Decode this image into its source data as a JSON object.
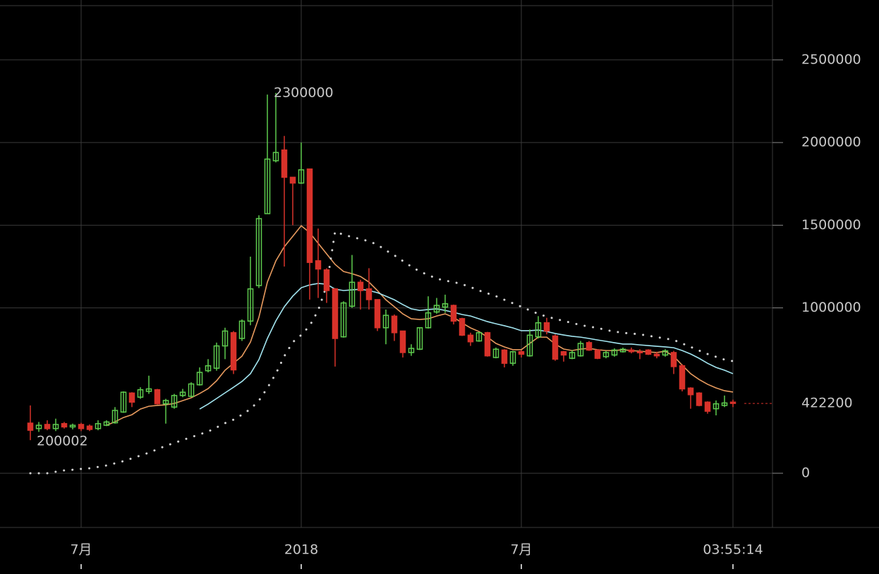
{
  "chart_data": {
    "type": "candlestick",
    "categories": [
      null,
      null,
      null,
      null,
      null,
      null,
      "7月",
      null,
      null,
      null,
      null,
      null,
      null,
      null,
      null,
      null,
      null,
      null,
      null,
      null,
      null,
      null,
      null,
      null,
      null,
      null,
      null,
      null,
      null,
      null,
      null,
      null,
      "2018",
      null,
      null,
      null,
      null,
      null,
      null,
      null,
      null,
      null,
      null,
      null,
      null,
      null,
      null,
      null,
      null,
      null,
      null,
      null,
      null,
      null,
      null,
      null,
      null,
      null,
      "7月",
      null,
      null,
      null,
      null,
      null,
      null,
      null,
      null,
      null,
      null,
      null,
      null,
      null,
      null,
      null,
      null,
      null,
      null,
      null,
      null,
      null,
      null,
      null,
      null,
      "03:55:14"
    ],
    "open": [
      303000,
      270000,
      295000,
      270000,
      300000,
      280000,
      295000,
      285000,
      270000,
      290000,
      305000,
      370000,
      485000,
      460000,
      495000,
      505000,
      420000,
      400000,
      470000,
      465000,
      535000,
      620000,
      635000,
      770000,
      850000,
      815000,
      920000,
      1135000,
      1570000,
      1890000,
      1955000,
      1790000,
      1755000,
      1840000,
      1285000,
      1230000,
      1115000,
      825000,
      1010000,
      1155000,
      1115000,
      1050000,
      880000,
      950000,
      860000,
      730000,
      750000,
      880000,
      975000,
      1005000,
      1015000,
      935000,
      835000,
      800000,
      850000,
      700000,
      745000,
      665000,
      735000,
      710000,
      825000,
      910000,
      830000,
      735000,
      695000,
      710000,
      790000,
      745000,
      705000,
      715000,
      735000,
      745000,
      735000,
      745000,
      720000,
      715000,
      730000,
      650000,
      515000,
      485000,
      430000,
      390000,
      410000,
      430000
    ],
    "high": [
      410000,
      310000,
      320000,
      330000,
      310000,
      300000,
      305000,
      295000,
      320000,
      320000,
      400000,
      495000,
      490000,
      520000,
      590000,
      510000,
      450000,
      480000,
      510000,
      550000,
      640000,
      690000,
      790000,
      880000,
      860000,
      930000,
      1310000,
      1560000,
      2290000,
      2300000,
      2040000,
      1790000,
      2000000,
      1840000,
      1480000,
      1240000,
      1120000,
      1040000,
      1320000,
      1170000,
      1240000,
      1050000,
      990000,
      960000,
      860000,
      780000,
      880000,
      1070000,
      1060000,
      1080000,
      1020000,
      940000,
      850000,
      855000,
      855000,
      760000,
      750000,
      740000,
      745000,
      870000,
      950000,
      940000,
      840000,
      740000,
      745000,
      800000,
      800000,
      750000,
      740000,
      755000,
      760000,
      760000,
      750000,
      750000,
      735000,
      750000,
      740000,
      660000,
      520000,
      490000,
      435000,
      440000,
      470000,
      445000
    ],
    "low": [
      200002,
      250000,
      260000,
      255000,
      270000,
      265000,
      255000,
      255000,
      260000,
      285000,
      300000,
      365000,
      400000,
      450000,
      480000,
      415000,
      300000,
      390000,
      460000,
      460000,
      530000,
      610000,
      620000,
      690000,
      600000,
      800000,
      895000,
      1120000,
      1570000,
      1880000,
      1250000,
      1500000,
      1750000,
      1050000,
      1060000,
      1030000,
      645000,
      820000,
      1000000,
      990000,
      990000,
      860000,
      780000,
      800000,
      700000,
      710000,
      745000,
      875000,
      965000,
      970000,
      900000,
      830000,
      770000,
      795000,
      705000,
      695000,
      640000,
      650000,
      700000,
      705000,
      815000,
      840000,
      680000,
      675000,
      690000,
      705000,
      740000,
      690000,
      695000,
      705000,
      730000,
      725000,
      690000,
      715000,
      695000,
      705000,
      600000,
      495000,
      390000,
      405000,
      360000,
      350000,
      400000,
      400000
    ],
    "close": [
      260000,
      290000,
      270000,
      295000,
      280000,
      290000,
      270000,
      265000,
      300000,
      310000,
      380000,
      490000,
      430000,
      505000,
      510000,
      420000,
      440000,
      470000,
      490000,
      540000,
      610000,
      650000,
      770000,
      860000,
      625000,
      920000,
      1115000,
      1540000,
      1900000,
      1940000,
      1790000,
      1755000,
      1835000,
      1275000,
      1235000,
      1105000,
      815000,
      1030000,
      1155000,
      1105000,
      1050000,
      880000,
      955000,
      850000,
      730000,
      755000,
      880000,
      970000,
      1015000,
      1025000,
      920000,
      835000,
      795000,
      850000,
      710000,
      750000,
      665000,
      735000,
      720000,
      835000,
      910000,
      860000,
      690000,
      715000,
      730000,
      785000,
      745000,
      695000,
      730000,
      745000,
      750000,
      735000,
      730000,
      720000,
      710000,
      740000,
      645000,
      510000,
      475000,
      410000,
      375000,
      420000,
      425000,
      422200
    ],
    "up_color": "#5ecb4e",
    "down_color": "#d8322a",
    "lines": [
      {
        "color": "#e79a5e",
        "style": "solid",
        "values": [
          null,
          null,
          null,
          null,
          null,
          null,
          null,
          null,
          null,
          290000,
          311000,
          337000,
          354000,
          388000,
          405000,
          410000,
          414000,
          422000,
          439000,
          456000,
          482000,
          512000,
          559000,
          623000,
          665000,
          708000,
          793000,
          943000,
          1156000,
          1284000,
          1370000,
          1433000,
          1497000,
          1455000,
          1391000,
          1327000,
          1263000,
          1220000,
          1207000,
          1190000,
          1156000,
          1105000,
          1049000,
          1007000,
          964000,
          934000,
          930000,
          934000,
          951000,
          964000,
          943000,
          909000,
          879000,
          857000,
          823000,
          785000,
          764000,
          747000,
          747000,
          785000,
          823000,
          823000,
          781000,
          751000,
          742000,
          751000,
          755000,
          747000,
          742000,
          742000,
          747000,
          742000,
          738000,
          734000,
          730000,
          738000,
          708000,
          653000,
          602000,
          567000,
          538000,
          516000,
          499000,
          491000
        ]
      },
      {
        "color": "#a2e4ef",
        "style": "solid",
        "values": [
          null,
          null,
          null,
          null,
          null,
          null,
          null,
          null,
          null,
          null,
          null,
          null,
          null,
          null,
          null,
          null,
          null,
          null,
          null,
          null,
          388000,
          418000,
          452000,
          486000,
          520000,
          555000,
          602000,
          687000,
          815000,
          921000,
          1007000,
          1071000,
          1122000,
          1139000,
          1148000,
          1143000,
          1113000,
          1105000,
          1109000,
          1113000,
          1105000,
          1092000,
          1071000,
          1049000,
          1020000,
          994000,
          985000,
          990000,
          994000,
          985000,
          973000,
          960000,
          951000,
          934000,
          917000,
          904000,
          892000,
          879000,
          862000,
          862000,
          866000,
          857000,
          845000,
          836000,
          828000,
          823000,
          815000,
          806000,
          798000,
          789000,
          781000,
          781000,
          776000,
          772000,
          768000,
          764000,
          759000,
          742000,
          721000,
          695000,
          665000,
          640000,
          623000,
          602000
        ]
      },
      {
        "color": "#d0d0d0",
        "style": "dotted",
        "values": [
          0,
          0,
          0,
          9000,
          17000,
          21000,
          26000,
          30000,
          38000,
          47000,
          60000,
          73000,
          90000,
          107000,
          124000,
          145000,
          166000,
          183000,
          201000,
          218000,
          235000,
          252000,
          277000,
          303000,
          324000,
          354000,
          388000,
          439000,
          516000,
          602000,
          708000,
          793000,
          836000,
          892000,
          985000,
          1135000,
          1463000,
          1442000,
          1429000,
          1416000,
          1403000,
          1382000,
          1348000,
          1318000,
          1284000,
          1250000,
          1220000,
          1199000,
          1177000,
          1165000,
          1156000,
          1143000,
          1126000,
          1105000,
          1088000,
          1071000,
          1049000,
          1028000,
          1007000,
          985000,
          964000,
          947000,
          934000,
          921000,
          909000,
          896000,
          887000,
          879000,
          866000,
          857000,
          849000,
          845000,
          840000,
          832000,
          823000,
          815000,
          806000,
          785000,
          764000,
          742000,
          721000,
          704000,
          687000,
          678000
        ]
      }
    ],
    "ylim": [
      -328000,
      2828000
    ],
    "yticks": [
      0,
      1000000,
      1500000,
      2000000,
      2500000
    ],
    "grid": true
  }
}
